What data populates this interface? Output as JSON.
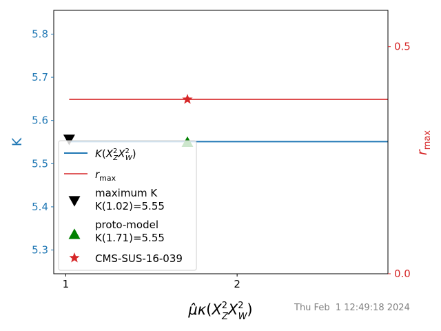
{
  "chart_data": {
    "type": "line",
    "x_domain": [
      0.93,
      2.88
    ],
    "xticks": [
      1,
      2
    ],
    "xtick_labels": [
      "1",
      "2"
    ],
    "xlabel": "μ̂κ(X_Z²X_W²)",
    "left_axis": {
      "label": "K",
      "color": "#1f77b4",
      "ylim": [
        5.245,
        5.855
      ],
      "ticks": [
        5.3,
        5.4,
        5.5,
        5.6,
        5.7,
        5.8
      ],
      "tick_labels": [
        "5.3",
        "5.4",
        "5.5",
        "5.6",
        "5.7",
        "5.8"
      ]
    },
    "right_axis": {
      "label": "r_max",
      "color": "#d62728",
      "ylim": [
        0.0,
        0.58
      ],
      "ticks": [
        0.0,
        0.5
      ],
      "tick_labels": [
        "0.0",
        "0.5"
      ]
    },
    "series": [
      {
        "name": "K(X_Z²X_W²)",
        "axis": "left",
        "color": "#1f77b4",
        "style": "line",
        "x": [
          1.02,
          2.88
        ],
        "y": [
          5.551,
          5.551
        ]
      },
      {
        "name": "r_max",
        "axis": "right",
        "color": "#d62728",
        "style": "line",
        "x": [
          1.02,
          2.88
        ],
        "y": [
          0.384,
          0.384
        ]
      }
    ],
    "markers": [
      {
        "name": "maximum K",
        "label_line2": " K(1.02)=5.55",
        "axis": "left",
        "shape": "triangle-down",
        "color": "#000000",
        "x": 1.02,
        "y": 5.555
      },
      {
        "name": "proto-model",
        "label_line2": "K(1.71)=5.55",
        "axis": "left",
        "shape": "triangle-up",
        "color": "#008000",
        "x": 1.71,
        "y": 5.551
      },
      {
        "name": "CMS-SUS-16-039",
        "axis": "right",
        "shape": "star",
        "color": "#d62728",
        "x": 1.71,
        "y": 0.384
      }
    ],
    "legend": {
      "placement": "center-left",
      "entries": [
        {
          "label": "K(X_Z²X_W²)"
        },
        {
          "label": "r_max"
        },
        {
          "label": "maximum K",
          "label_line2": " K(1.02)=5.55"
        },
        {
          "label": "proto-model",
          "label_line2": "K(1.71)=5.55"
        },
        {
          "label": "CMS-SUS-16-039"
        }
      ]
    },
    "grid": false
  },
  "footer": {
    "timestamp": "Thu Feb  1 12:49:18 2024"
  }
}
